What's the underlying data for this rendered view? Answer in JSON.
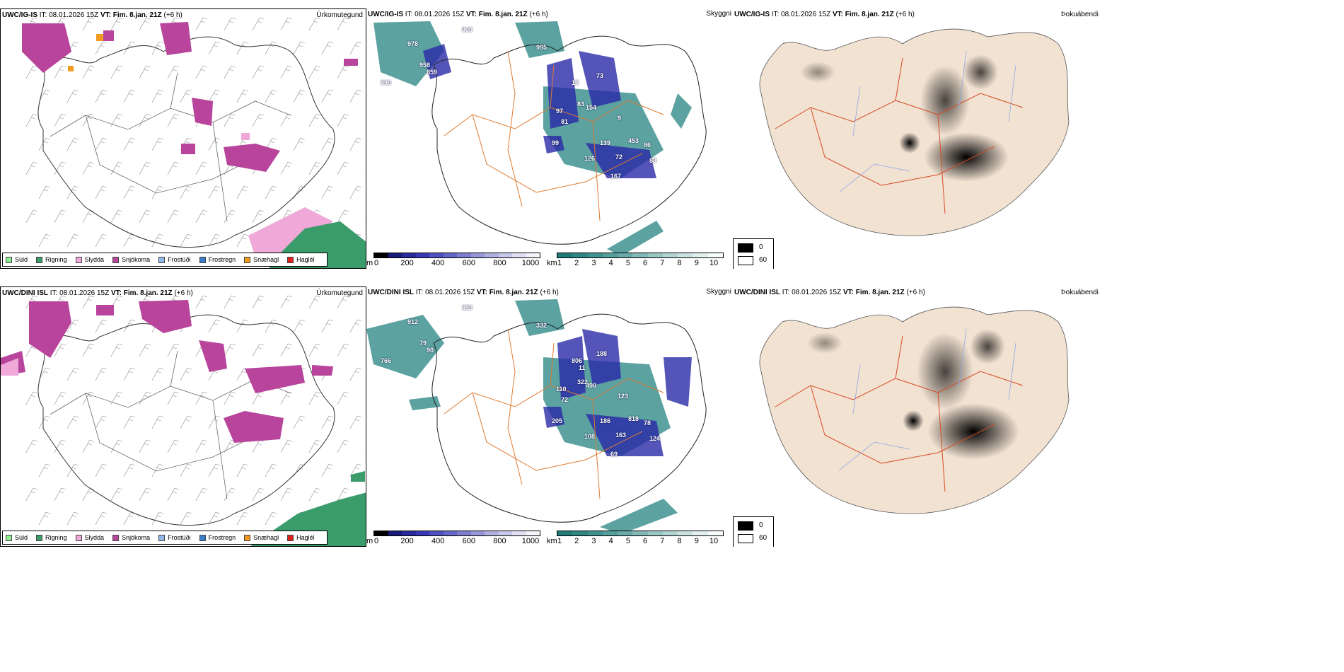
{
  "rows": [
    {
      "model": "UWC/IG-IS",
      "it_label": "IT:",
      "it_value": "08.01.2026 15Z",
      "vt_label": "VT:",
      "vt_value": "Fim. 8.jan. 21Z",
      "lead": "(+6 h)",
      "precip_title": "Úrkomutegund",
      "vis_title": "Skyggni",
      "cloud_title": "Þokuábendi",
      "vis_numbers": [
        "978",
        "990",
        "995",
        "958",
        "859",
        "900",
        "97",
        "81",
        "83",
        "154",
        "73",
        "99",
        "126",
        "72",
        "83",
        "167",
        "86",
        "453",
        "139",
        "9",
        "15"
      ]
    },
    {
      "model": "UWC/DINI ISL",
      "it_label": "IT:",
      "it_value": "08.01.2026 15Z",
      "vt_label": "VT:",
      "vt_value": "Fim. 8.jan. 21Z",
      "lead": "(+6 h)",
      "precip_title": "Úrkomutegund",
      "vis_title": "Skyggni",
      "cloud_title": "Þokuábendi",
      "vis_numbers": [
        "912",
        "766",
        "332",
        "79",
        "90",
        "352",
        "110",
        "72",
        "322",
        "498",
        "188",
        "205",
        "108",
        "163",
        "124",
        "69",
        "78",
        "818",
        "186",
        "123",
        "806",
        "11"
      ]
    }
  ],
  "precip_legend": [
    {
      "label": "Súld",
      "color": "#90ee90"
    },
    {
      "label": "Rigning",
      "color": "#3a9b6b"
    },
    {
      "label": "Slydda",
      "color": "#f0a8d8"
    },
    {
      "label": "Snjókoma",
      "color": "#b8449c"
    },
    {
      "label": "Frostúði",
      "color": "#8fb8e8"
    },
    {
      "label": "Frostregn",
      "color": "#3a7ccc"
    },
    {
      "label": "Snæhagl",
      "color": "#f09a20"
    },
    {
      "label": "Haglél",
      "color": "#e0201a"
    }
  ],
  "height_scale": {
    "unit": "m",
    "ticks": [
      "0",
      "200",
      "400",
      "600",
      "800",
      "1000"
    ],
    "colors": [
      "#000000",
      "#1a1a7a",
      "#2a2a9c",
      "#3838b4",
      "#5050c0",
      "#6666c8",
      "#7e7ed0",
      "#9898d8",
      "#b0b0e0",
      "#c8c8ea",
      "#e0e0f2",
      "#f4f4fa"
    ]
  },
  "km_scale": {
    "unit": "km",
    "ticks": [
      "1",
      "2",
      "3",
      "4",
      "5",
      "6",
      "7",
      "8",
      "9",
      "10"
    ],
    "colors": [
      "#1f7a78",
      "#2f8684",
      "#3f9290",
      "#549e9c",
      "#6aaaa8",
      "#82b8b6",
      "#9ac6c4",
      "#b2d4d2",
      "#cae2e0",
      "#e2f0ef",
      "#f6fbfb"
    ]
  },
  "cloud_legend": [
    {
      "label": "0",
      "color": "#000000"
    },
    {
      "label": "60",
      "color": "#ffffff"
    }
  ],
  "colors": {
    "land_beige": "#f2e2d2",
    "roads_orange": "#e07a30",
    "rivers_blue": "#8ba8e8",
    "snow_magenta": "#b8449c",
    "rain_green": "#3a9b6b",
    "vis_teal": "#3f9290",
    "vis_blue": "#2a2aa8"
  }
}
